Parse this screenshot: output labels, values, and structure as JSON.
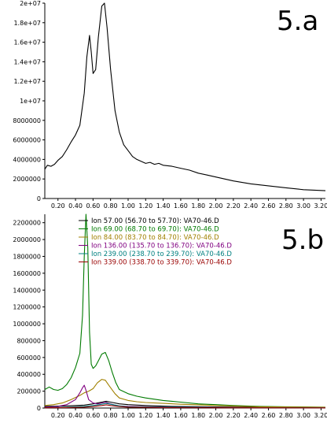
{
  "chart_data": [
    {
      "type": "line",
      "panel_label": "5.a",
      "x_tick_labels": [
        "0.20",
        "0.40",
        "0.60",
        "0.80",
        "1.00",
        "1.20",
        "1.40",
        "1.60",
        "1.80",
        "2.00",
        "2.20",
        "2.40",
        "2.60",
        "2.80",
        "3.00",
        "3.20"
      ],
      "x_ticks": [
        0.2,
        0.4,
        0.6,
        0.8,
        1.0,
        1.2,
        1.4,
        1.6,
        1.8,
        2.0,
        2.2,
        2.4,
        2.6,
        2.8,
        3.0,
        3.2
      ],
      "xlim": [
        0.05,
        3.25
      ],
      "ylim": [
        0,
        20000000
      ],
      "y_ticks": [
        0,
        2000000,
        4000000,
        6000000,
        8000000,
        10000000,
        12000000,
        14000000,
        16000000,
        18000000,
        20000000
      ],
      "y_tick_labels": [
        "0",
        "2000000",
        "4000000",
        "6000000",
        "8000000",
        "1e+07",
        "1.2e+07",
        "1.4e+07",
        "1.6e+07",
        "1.8e+07",
        "2e+07"
      ],
      "series": [
        {
          "color": "#000000",
          "x": [
            0.05,
            0.08,
            0.12,
            0.16,
            0.2,
            0.25,
            0.3,
            0.35,
            0.4,
            0.45,
            0.5,
            0.53,
            0.56,
            0.58,
            0.6,
            0.63,
            0.66,
            0.7,
            0.73,
            0.76,
            0.8,
            0.85,
            0.9,
            0.95,
            1.0,
            1.05,
            1.1,
            1.15,
            1.2,
            1.25,
            1.3,
            1.35,
            1.4,
            1.5,
            1.6,
            1.7,
            1.8,
            1.9,
            2.0,
            2.2,
            2.4,
            2.6,
            2.8,
            3.0,
            3.25
          ],
          "y": [
            3000000,
            3400000,
            3300000,
            3500000,
            3900000,
            4300000,
            5000000,
            5800000,
            6500000,
            7500000,
            10800000,
            14500000,
            16700000,
            15000000,
            12800000,
            13200000,
            16500000,
            19700000,
            20000000,
            17500000,
            13200000,
            9000000,
            6800000,
            5500000,
            4900000,
            4300000,
            4000000,
            3800000,
            3600000,
            3700000,
            3500000,
            3600000,
            3400000,
            3300000,
            3100000,
            2900000,
            2600000,
            2400000,
            2200000,
            1800000,
            1500000,
            1300000,
            1100000,
            900000,
            800000
          ]
        }
      ]
    },
    {
      "type": "line",
      "panel_label": "5.b",
      "x_tick_labels": [
        "0.20",
        "0.40",
        "0.60",
        "0.80",
        "1.00",
        "1.20",
        "1.40",
        "1.60",
        "1.80",
        "2.00",
        "2.20",
        "2.40",
        "2.60",
        "2.80",
        "3.00",
        "3.20"
      ],
      "x_ticks": [
        0.2,
        0.4,
        0.6,
        0.8,
        1.0,
        1.2,
        1.4,
        1.6,
        1.8,
        2.0,
        2.2,
        2.4,
        2.6,
        2.8,
        3.0,
        3.2
      ],
      "xlim": [
        0.05,
        3.25
      ],
      "ylim": [
        0,
        2300000
      ],
      "y_ticks": [
        0,
        200000,
        400000,
        600000,
        800000,
        1000000,
        1200000,
        1400000,
        1600000,
        1800000,
        2000000,
        2200000
      ],
      "y_tick_labels": [
        "0",
        "200000",
        "400000",
        "600000",
        "800000",
        "1000000",
        "1200000",
        "1400000",
        "1600000",
        "1800000",
        "2000000",
        "2200000"
      ],
      "series": [
        {
          "name": "Ion  57.00 (56.70 to 57.70): VA70-46.D",
          "color": "#000000",
          "x": [
            0.05,
            0.3,
            0.5,
            0.6,
            0.7,
            0.75,
            0.8,
            0.9,
            1.0,
            1.2,
            1.5,
            2.0,
            2.5,
            3.25
          ],
          "y": [
            20000,
            25000,
            35000,
            50000,
            70000,
            80000,
            70000,
            50000,
            40000,
            30000,
            20000,
            12000,
            8000,
            5000
          ]
        },
        {
          "name": "Ion  69.00 (68.70 to 69.70): VA70-46.D",
          "color": "#007a00",
          "x": [
            0.05,
            0.1,
            0.15,
            0.2,
            0.25,
            0.3,
            0.35,
            0.4,
            0.45,
            0.48,
            0.5,
            0.52,
            0.54,
            0.56,
            0.58,
            0.6,
            0.63,
            0.66,
            0.7,
            0.74,
            0.78,
            0.82,
            0.86,
            0.9,
            1.0,
            1.1,
            1.2,
            1.3,
            1.4,
            1.5,
            1.6,
            1.8,
            2.0,
            2.2,
            2.5,
            2.8,
            3.25
          ],
          "y": [
            220000,
            250000,
            220000,
            210000,
            230000,
            280000,
            360000,
            480000,
            650000,
            1100000,
            1800000,
            2300000,
            1900000,
            900000,
            520000,
            470000,
            500000,
            560000,
            640000,
            660000,
            560000,
            420000,
            300000,
            220000,
            170000,
            140000,
            120000,
            105000,
            90000,
            80000,
            70000,
            50000,
            40000,
            30000,
            20000,
            15000,
            10000
          ]
        },
        {
          "name": "Ion  84.00 (83.70 to 84.70): VA70-46.D",
          "color": "#a08000",
          "x": [
            0.05,
            0.15,
            0.25,
            0.35,
            0.45,
            0.5,
            0.55,
            0.6,
            0.65,
            0.7,
            0.74,
            0.78,
            0.85,
            0.9,
            1.0,
            1.1,
            1.2,
            1.4,
            1.6,
            2.0,
            2.5,
            3.25
          ],
          "y": [
            30000,
            40000,
            60000,
            100000,
            150000,
            180000,
            200000,
            230000,
            300000,
            340000,
            330000,
            270000,
            170000,
            120000,
            90000,
            75000,
            65000,
            55000,
            45000,
            30000,
            15000,
            8000
          ]
        },
        {
          "name": "Ion 136.00 (135.70 to 136.70): VA70-46.D",
          "color": "#800080",
          "x": [
            0.05,
            0.2,
            0.3,
            0.4,
            0.45,
            0.48,
            0.5,
            0.52,
            0.55,
            0.6,
            0.65,
            0.7,
            0.74,
            0.78,
            0.85,
            0.9,
            1.0,
            1.2,
            1.5,
            2.0,
            3.25
          ],
          "y": [
            10000,
            20000,
            40000,
            100000,
            180000,
            240000,
            270000,
            210000,
            100000,
            60000,
            50000,
            60000,
            70000,
            55000,
            35000,
            25000,
            20000,
            15000,
            10000,
            6000,
            3000
          ]
        },
        {
          "name": "Ion 239.00 (238.70 to 239.70): VA70-46.D",
          "color": "#008080",
          "x": [
            0.05,
            0.3,
            0.5,
            0.6,
            0.7,
            0.75,
            0.8,
            0.9,
            1.0,
            1.5,
            2.0,
            3.25
          ],
          "y": [
            5000,
            10000,
            20000,
            30000,
            45000,
            55000,
            45000,
            25000,
            15000,
            8000,
            5000,
            3000
          ]
        },
        {
          "name": "Ion 339.00 (338.70 to 339.70): VA70-46.D",
          "color": "#990000",
          "x": [
            0.05,
            0.3,
            0.5,
            0.6,
            0.7,
            0.75,
            0.8,
            0.9,
            1.0,
            1.5,
            2.0,
            3.25
          ],
          "y": [
            3000,
            6000,
            10000,
            18000,
            30000,
            38000,
            30000,
            18000,
            10000,
            5000,
            3000,
            2000
          ]
        }
      ]
    }
  ]
}
